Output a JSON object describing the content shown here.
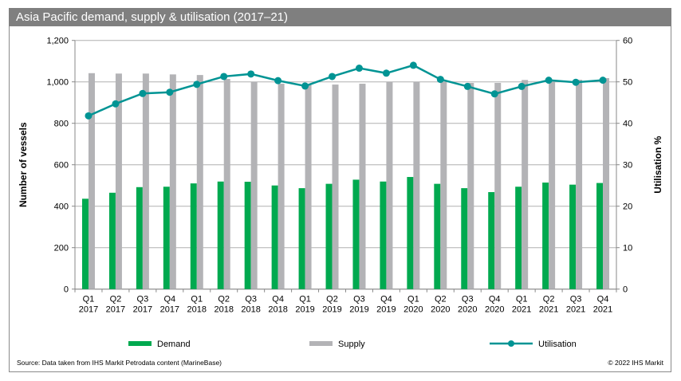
{
  "title": "Asia Pacific demand, supply & utilisation (2017–21)",
  "source": "Source: Data taken from IHS Markit Petrodata content (MarineBase)",
  "copyright": "© 2022 IHS Markit",
  "colors": {
    "demand": "#00a94f",
    "supply": "#b3b3b6",
    "utilisation": "#009494",
    "title_bar": "#7f7f7f",
    "grid": "#b0b0b0"
  },
  "chart_data": {
    "type": "bar",
    "categories": [
      [
        "Q1",
        "2017"
      ],
      [
        "Q2",
        "2017"
      ],
      [
        "Q3",
        "2017"
      ],
      [
        "Q4",
        "2017"
      ],
      [
        "Q1",
        "2018"
      ],
      [
        "Q2",
        "2018"
      ],
      [
        "Q3",
        "2018"
      ],
      [
        "Q4",
        "2018"
      ],
      [
        "Q1",
        "2019"
      ],
      [
        "Q2",
        "2019"
      ],
      [
        "Q3",
        "2019"
      ],
      [
        "Q4",
        "2019"
      ],
      [
        "Q1",
        "2020"
      ],
      [
        "Q2",
        "2020"
      ],
      [
        "Q3",
        "2020"
      ],
      [
        "Q4",
        "2020"
      ],
      [
        "Q1",
        "2021"
      ],
      [
        "Q2",
        "2021"
      ],
      [
        "Q3",
        "2021"
      ],
      [
        "Q4",
        "2021"
      ]
    ],
    "series": [
      {
        "name": "Demand",
        "type": "bar",
        "axis": "left",
        "values": [
          436,
          465,
          492,
          494,
          510,
          519,
          518,
          500,
          487,
          508,
          528,
          519,
          541,
          508,
          487,
          468,
          494,
          514,
          504,
          512
        ]
      },
      {
        "name": "Supply",
        "type": "bar",
        "axis": "left",
        "values": [
          1042,
          1040,
          1040,
          1036,
          1033,
          1014,
          1000,
          991,
          988,
          987,
          991,
          1000,
          1000,
          1000,
          995,
          995,
          1009,
          1005,
          1010,
          1018
        ]
      },
      {
        "name": "Utilisation",
        "type": "line",
        "axis": "right",
        "values": [
          41.8,
          44.7,
          47.2,
          47.5,
          49.4,
          51.3,
          51.9,
          50.3,
          49.0,
          51.3,
          53.3,
          52.1,
          54.0,
          50.6,
          48.9,
          47.1,
          48.9,
          50.4,
          49.9,
          50.4
        ]
      }
    ],
    "ylabel": "Number of vessels",
    "y2label": "Utilisation %",
    "ylim": [
      0,
      1200
    ],
    "y2lim": [
      0,
      60
    ],
    "yticks": [
      "0",
      "200",
      "400",
      "600",
      "800",
      "1,000",
      "1,200"
    ],
    "y2ticks": [
      "0",
      "10",
      "20",
      "30",
      "40",
      "50",
      "60"
    ],
    "grid": true,
    "legend": "bottom"
  }
}
